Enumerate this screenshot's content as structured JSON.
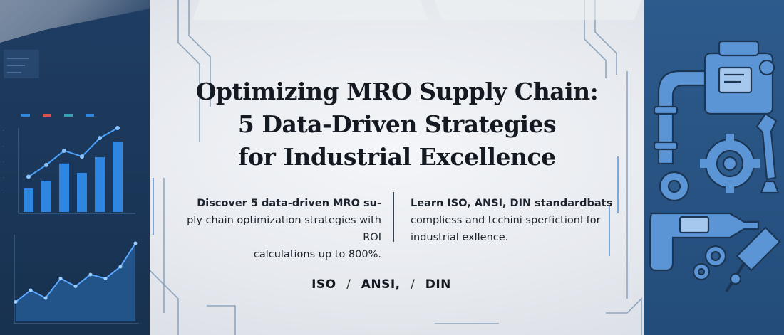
{
  "title": {
    "line1": "Optimizing MRO Supply Chain:",
    "line2": "5 Data-Driven Strategies",
    "line3": "for Industrial Excellence"
  },
  "left_text": {
    "lead": "Discover 5 data-driven MRO su-",
    "line2": "ply chain optimization strategies with ROI",
    "line3": "calculations up to 800%."
  },
  "right_text": {
    "lead": "Learn ISO, ANSI, DIN standardbats",
    "line2": "compliess and tcchini sperfictionl for",
    "line3": "industrial exllence."
  },
  "standards": {
    "iso": "ISO",
    "sep1": "/",
    "ansi": "ANSI,",
    "sep2": "/",
    "din": "DIN"
  },
  "icons": [
    "pump-icon",
    "pipe-icon",
    "gear-icon",
    "wrench-icon",
    "drill-icon",
    "screwdriver-icon",
    "nut-icon",
    "bolt-icon"
  ],
  "colors": {
    "left_panel": "#1f3d63",
    "right_panel": "#2d5b8c",
    "chart_bar": "#2f86e0",
    "icon_fill": "#5b95d6",
    "title_text": "#151a22"
  },
  "bar_chart": {
    "legend_colors": [
      "#2f86e0",
      "#d9534f",
      "#36a3b5",
      "#2f86e0"
    ],
    "bars": [
      0.3,
      0.4,
      0.62,
      0.5,
      0.7,
      0.9
    ],
    "trend": [
      0.42,
      0.56,
      0.73,
      0.66,
      0.88,
      1.0
    ]
  },
  "area_chart": {
    "points": [
      0.25,
      0.4,
      0.3,
      0.55,
      0.45,
      0.6,
      0.55,
      0.7,
      1.0
    ]
  }
}
